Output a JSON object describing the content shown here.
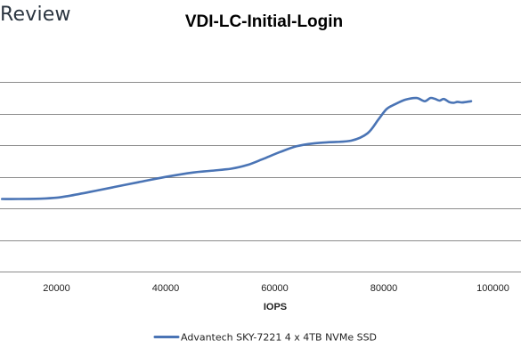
{
  "brand": {
    "text": "Review"
  },
  "chart_data": {
    "type": "line",
    "title": "VDI-LC-Initial-Login",
    "xlabel": "IOPS",
    "ylabel": "",
    "xlim": [
      0,
      100000
    ],
    "ylim": [
      0,
      7
    ],
    "x_ticks": [
      20000,
      40000,
      60000,
      80000,
      100000
    ],
    "x_tick_labels": [
      "20000",
      "40000",
      "60000",
      "80000",
      "100000"
    ],
    "y_gridlines": [
      0,
      1,
      2,
      3,
      4,
      5,
      6
    ],
    "y_tick_labels_shown": false,
    "grid": true,
    "legend_position": "bottom",
    "series": [
      {
        "name": "Advantech SKY-7221 4 x 4TB NVMe SSD",
        "color": "#4a74b5",
        "x": [
          10000,
          13000,
          17000,
          20000,
          22000,
          26000,
          30000,
          35000,
          40000,
          45000,
          48000,
          52000,
          55000,
          58000,
          61000,
          64000,
          67000,
          70000,
          74000,
          77000,
          79000,
          80500,
          82000,
          84000,
          86000,
          87500,
          88500,
          89300,
          90200,
          91000,
          92000,
          92800,
          93500,
          94300,
          95200,
          96000
        ],
        "values": [
          2.3,
          2.3,
          2.31,
          2.34,
          2.39,
          2.52,
          2.66,
          2.83,
          3.0,
          3.14,
          3.19,
          3.26,
          3.38,
          3.58,
          3.79,
          3.97,
          4.06,
          4.1,
          4.15,
          4.38,
          4.82,
          5.15,
          5.3,
          5.45,
          5.5,
          5.4,
          5.5,
          5.48,
          5.42,
          5.47,
          5.37,
          5.35,
          5.38,
          5.36,
          5.38,
          5.4
        ]
      }
    ]
  }
}
